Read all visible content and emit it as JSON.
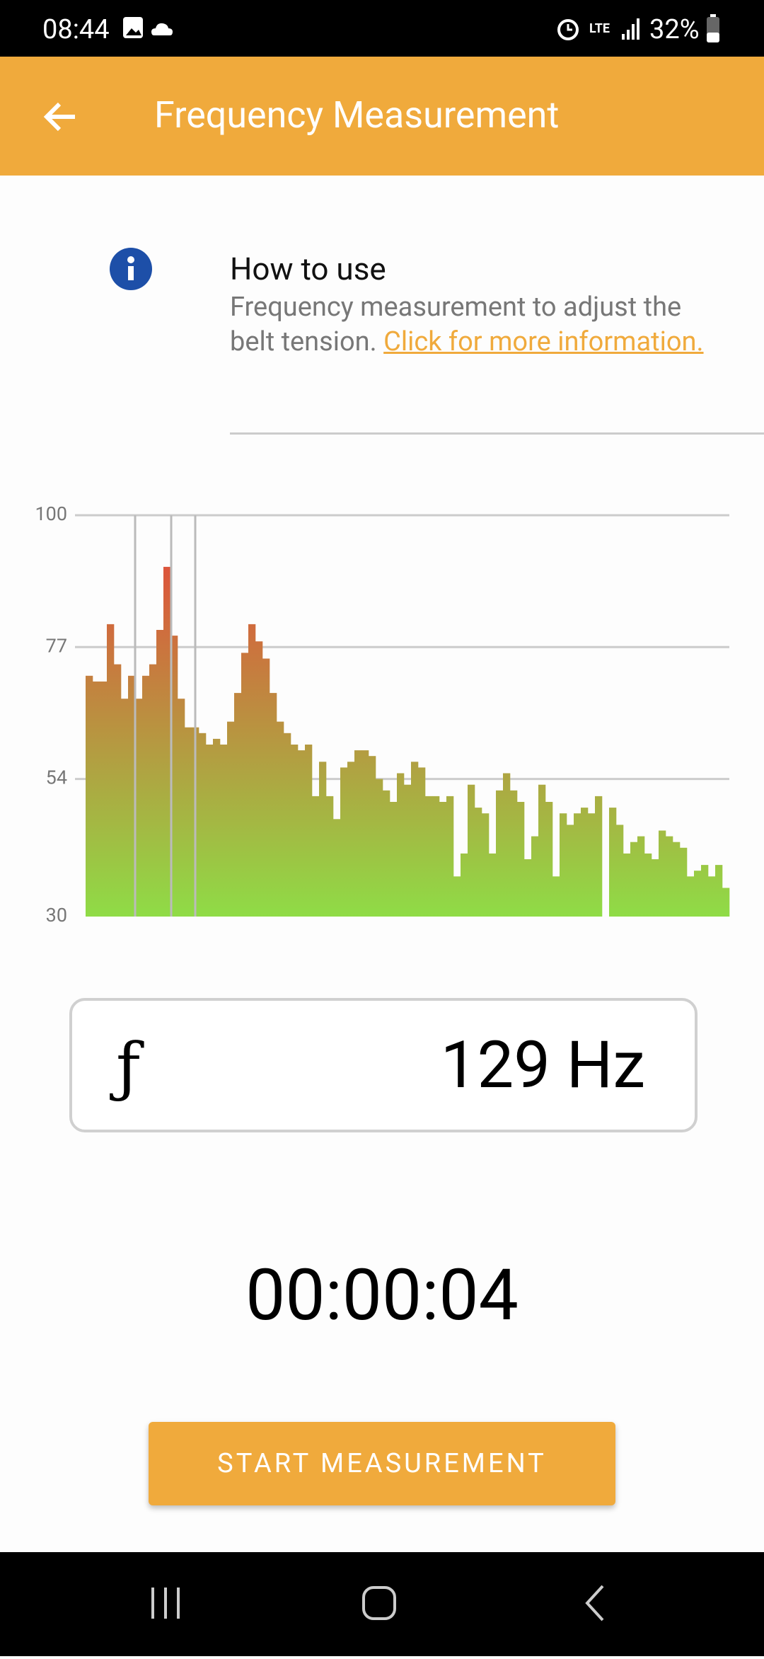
{
  "status_bar": {
    "time": "08:44",
    "network": "LTE",
    "battery": "32%"
  },
  "app_bar": {
    "title": "Frequency Measurement"
  },
  "info": {
    "heading": "How to use",
    "text": "Frequency measurement to adjust the belt tension.",
    "link": "Click for more information."
  },
  "chart_data": {
    "type": "bar",
    "ylim": [
      30,
      100
    ],
    "yticks": [
      30,
      54,
      77,
      100
    ],
    "grid": true,
    "color_top": "#e8413a",
    "color_bottom": "#8fdc46",
    "values": [
      72,
      71,
      71,
      81,
      74,
      68,
      72,
      68,
      72,
      74,
      80,
      91,
      79,
      68,
      63,
      63,
      62,
      60,
      61,
      60,
      64,
      69,
      76,
      81,
      78,
      75,
      69,
      64,
      62,
      60,
      59,
      60,
      51,
      57,
      51,
      47,
      56,
      57,
      59,
      59,
      58,
      54,
      52,
      50,
      55,
      53,
      57,
      56,
      51,
      51,
      50,
      51,
      37,
      41,
      53,
      49,
      48,
      41,
      52,
      55,
      52,
      50,
      40,
      44,
      53,
      50,
      37,
      48,
      46,
      48,
      49,
      48,
      51,
      30,
      49,
      46,
      41,
      43,
      44,
      41,
      40,
      45,
      44,
      43,
      42,
      37,
      38,
      39,
      37,
      39,
      35
    ]
  },
  "frequency": {
    "symbol": "ƒ",
    "value": "129 Hz"
  },
  "timer": "00:00:04",
  "button": "START MEASUREMENT"
}
